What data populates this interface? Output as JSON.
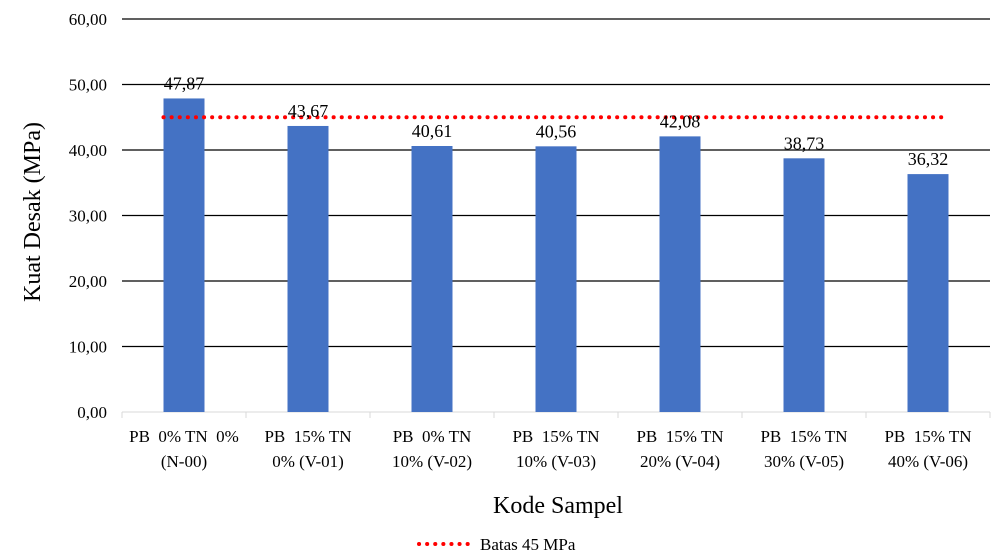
{
  "chart_data": {
    "type": "bar",
    "categories": [
      [
        "PB  0% TN  0%",
        "(N-00)"
      ],
      [
        "PB  15% TN",
        "0% (V-01)"
      ],
      [
        "PB  0% TN",
        "10% (V-02)"
      ],
      [
        "PB  15% TN",
        "10% (V-03)"
      ],
      [
        "PB  15% TN",
        "20% (V-04)"
      ],
      [
        "PB  15% TN",
        "30% (V-05)"
      ],
      [
        "PB  15% TN",
        "40% (V-06)"
      ]
    ],
    "series": [
      {
        "values": [
          47.87,
          43.67,
          40.61,
          40.56,
          42.08,
          38.73,
          36.32
        ],
        "labels": [
          "47,87",
          "43,67",
          "40,61",
          "40,56",
          "42,08",
          "38,73",
          "36,32"
        ],
        "color": "#4472C4"
      }
    ],
    "reference_line": {
      "name": "Batas 45 MPa",
      "value": 45,
      "color": "#FF0000",
      "style": "dotted"
    },
    "xlabel": "Kode Sampel",
    "ylabel": "Kuat Desak (MPa)",
    "ylim": [
      0,
      60
    ],
    "yticks": [
      0,
      10,
      20,
      30,
      40,
      50,
      60
    ],
    "ytick_labels": [
      "0,00",
      "10,00",
      "20,00",
      "30,00",
      "40,00",
      "50,00",
      "60,00"
    ],
    "grid": true,
    "legend_position": "bottom"
  }
}
